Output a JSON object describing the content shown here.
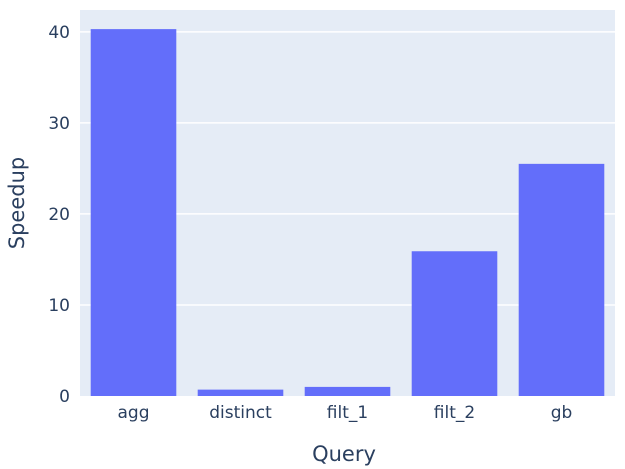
{
  "chart_data": {
    "type": "bar",
    "title": "",
    "xlabel": "Query",
    "ylabel": "Speedup",
    "categories": [
      "agg",
      "distinct",
      "filt_1",
      "filt_2",
      "gb"
    ],
    "values": [
      40.3,
      0.7,
      1.0,
      15.9,
      25.5
    ],
    "ylim": [
      0,
      42.4
    ],
    "yticks": [
      0,
      10,
      20,
      30,
      40
    ],
    "grid": true,
    "legend": "none",
    "colors": {
      "bar": "#636efa",
      "plot_background": "#e5ecf6",
      "grid": "#ffffff",
      "text": "#2a3f5f"
    }
  }
}
